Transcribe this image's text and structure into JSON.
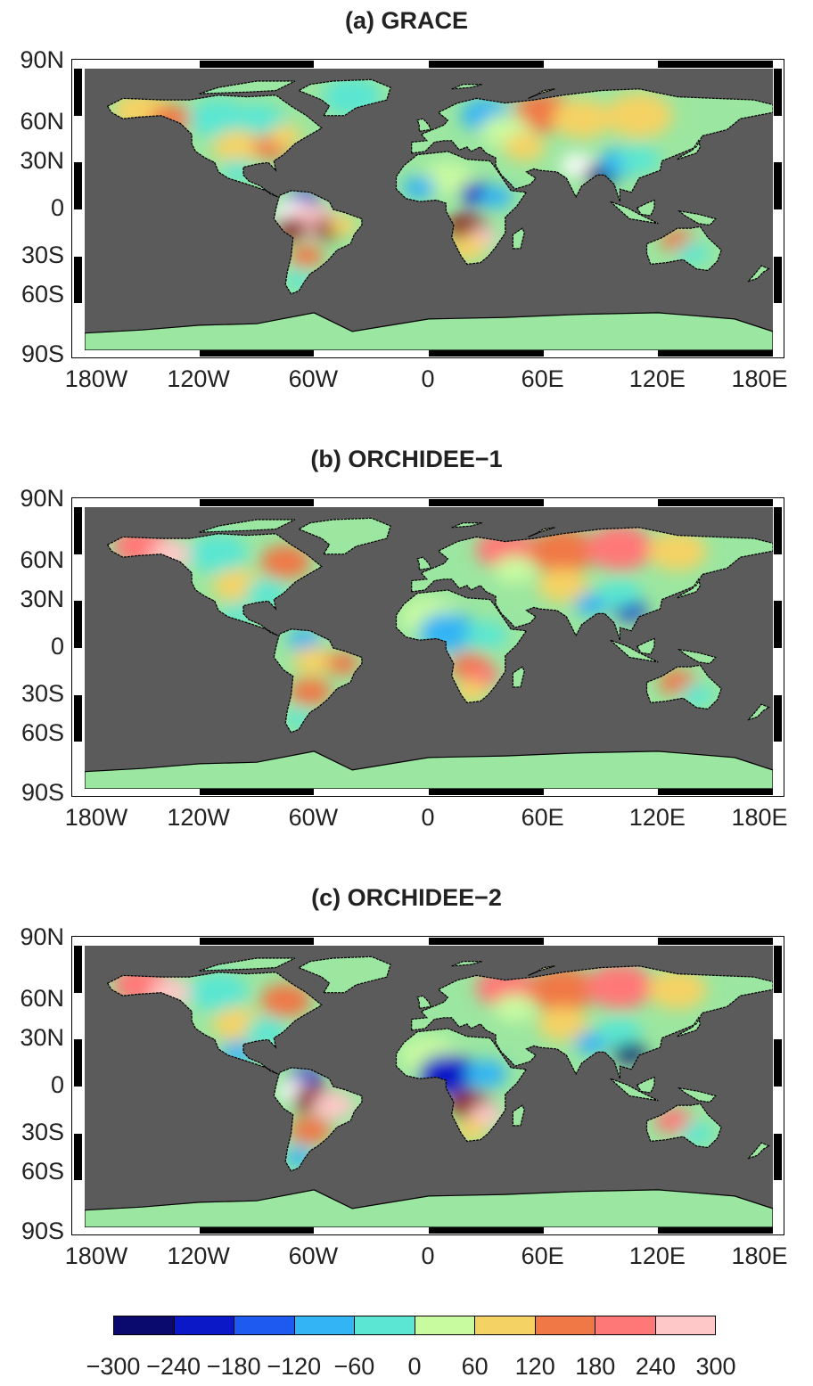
{
  "panels": [
    {
      "title": "(a) GRACE",
      "variant": "grace"
    },
    {
      "title": "(b) ORCHIDEE−1",
      "variant": "orch1"
    },
    {
      "title": "(c) ORCHIDEE−2",
      "variant": "orch2"
    }
  ],
  "axes": {
    "lat_labels": [
      "90N",
      "60N",
      "30N",
      "0",
      "30S",
      "60S",
      "90S"
    ],
    "lon_labels": [
      "180W",
      "120W",
      "60W",
      "0",
      "60E",
      "120E",
      "180E"
    ]
  },
  "colorbar": {
    "labels": [
      "−300",
      "−240",
      "−180",
      "−120",
      "−60",
      "0",
      "60",
      "120",
      "180",
      "240",
      "300"
    ],
    "colors": [
      "#0a0a6e",
      "#0a18c8",
      "#1e5af0",
      "#32b4f5",
      "#5ae6d2",
      "#c8faa0",
      "#f5d264",
      "#f07846",
      "#ff7878",
      "#ffc8c8"
    ]
  },
  "colors": {
    "ocean": "#5b5b5b",
    "land_base": "#9be6a0"
  }
}
